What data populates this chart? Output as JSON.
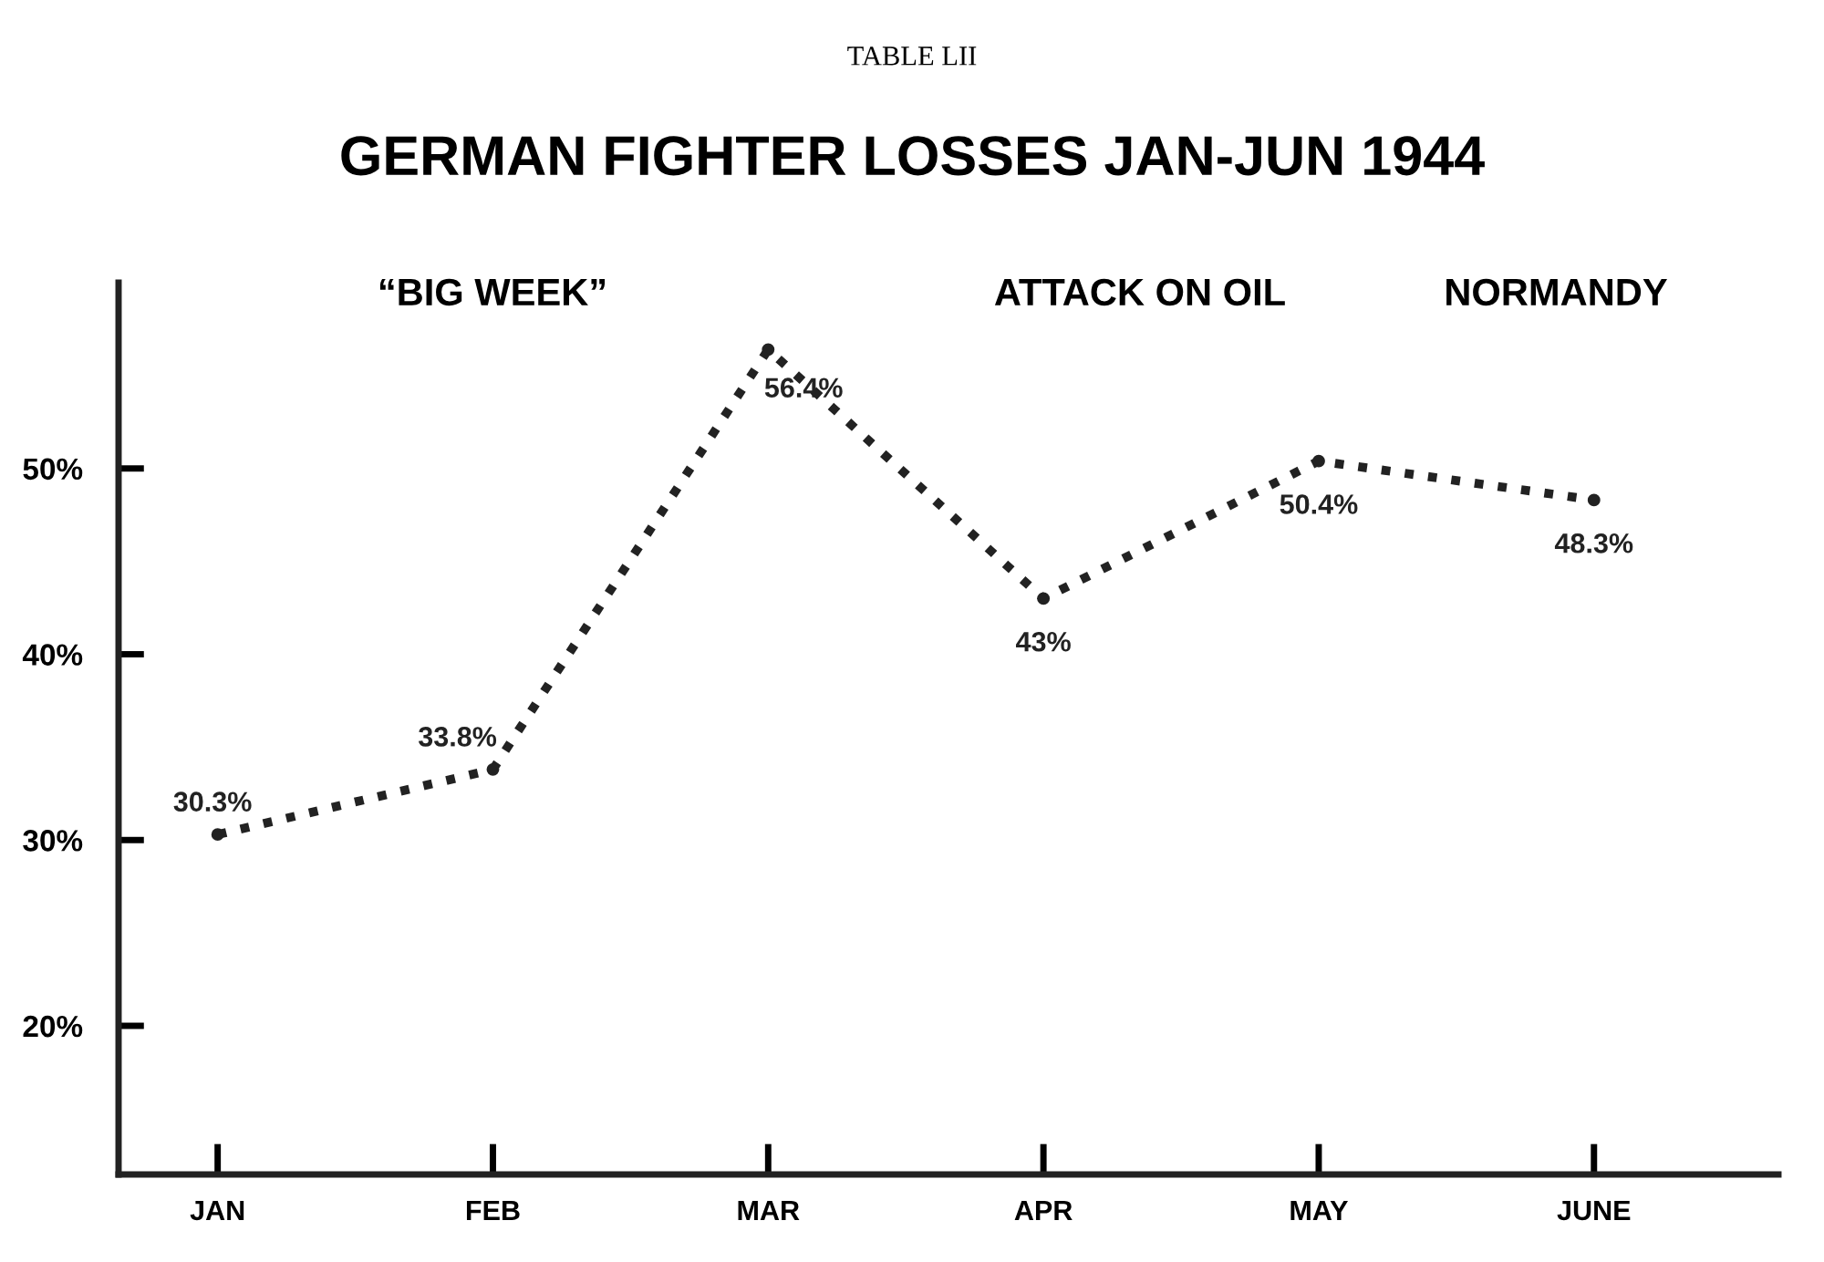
{
  "chart_data": {
    "type": "line",
    "subtitle": "TABLE LII",
    "title": "GERMAN FIGHTER LOSSES JAN-JUN 1944",
    "categories": [
      "JAN",
      "FEB",
      "MAR",
      "APR",
      "MAY",
      "JUNE"
    ],
    "series": [
      {
        "color": "#222222",
        "values": [
          30.3,
          33.8,
          56.4,
          43,
          50.4,
          48.3
        ],
        "value_labels": [
          "30.3%",
          "33.8%",
          "56.4%",
          "43%",
          "50.4%",
          "48.3%"
        ]
      }
    ],
    "ylim": [
      12,
      60
    ],
    "yticks": [
      {
        "value": 20,
        "label": "20%"
      },
      {
        "value": 30,
        "label": "30%"
      },
      {
        "value": 40,
        "label": "40%"
      },
      {
        "value": 50,
        "label": "50%"
      }
    ],
    "annotations": [
      "“BIG WEEK”",
      "ATTACK ON OIL",
      "NORMANDY"
    ],
    "grid": false,
    "legend": false,
    "marker": "circle",
    "line_style": "dotted"
  }
}
